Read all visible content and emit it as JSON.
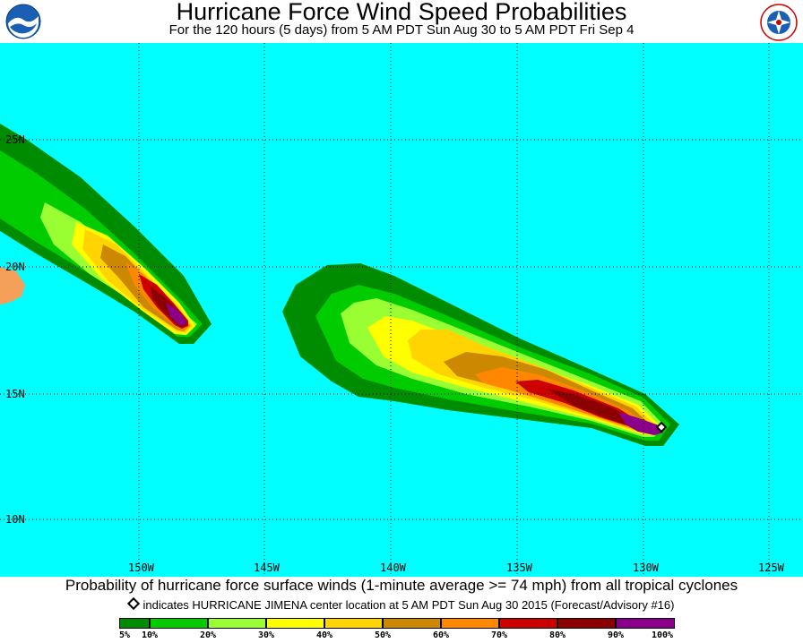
{
  "header": {
    "title": "Hurricane Force Wind Speed Probabilities",
    "subtitle": "For the 120 hours (5 days) from 5 AM PDT Sun Aug 30 to 5 AM PDT Fri Sep 4",
    "left_logo": "NOAA",
    "right_logo_text": "NATIONAL WEATHER SERVICE"
  },
  "map": {
    "ocean_color": "#00ffff",
    "land_color": "#f5a05a",
    "lat_labels": [
      "25N",
      "20N",
      "15N",
      "10N"
    ],
    "lon_labels": [
      "150W",
      "145W",
      "140W",
      "135W",
      "130W",
      "125W"
    ]
  },
  "footer": {
    "caption": "Probability of hurricane force surface winds (1-minute average >= 74 mph) from all tropical cyclones",
    "marker_note": "indicates HURRICANE JIMENA center location at 5 AM PDT Sun Aug 30 2015 (Forecast/Advisory #16)",
    "legend": {
      "colors": [
        "#008c00",
        "#00cc00",
        "#99ff33",
        "#ffff00",
        "#ffd400",
        "#cc8800",
        "#ff8800",
        "#cc0000",
        "#8b0000",
        "#8b008b"
      ],
      "labels": [
        "5%",
        "10%",
        "20%",
        "30%",
        "40%",
        "50%",
        "60%",
        "70%",
        "80%",
        "90%",
        "100%"
      ]
    }
  }
}
